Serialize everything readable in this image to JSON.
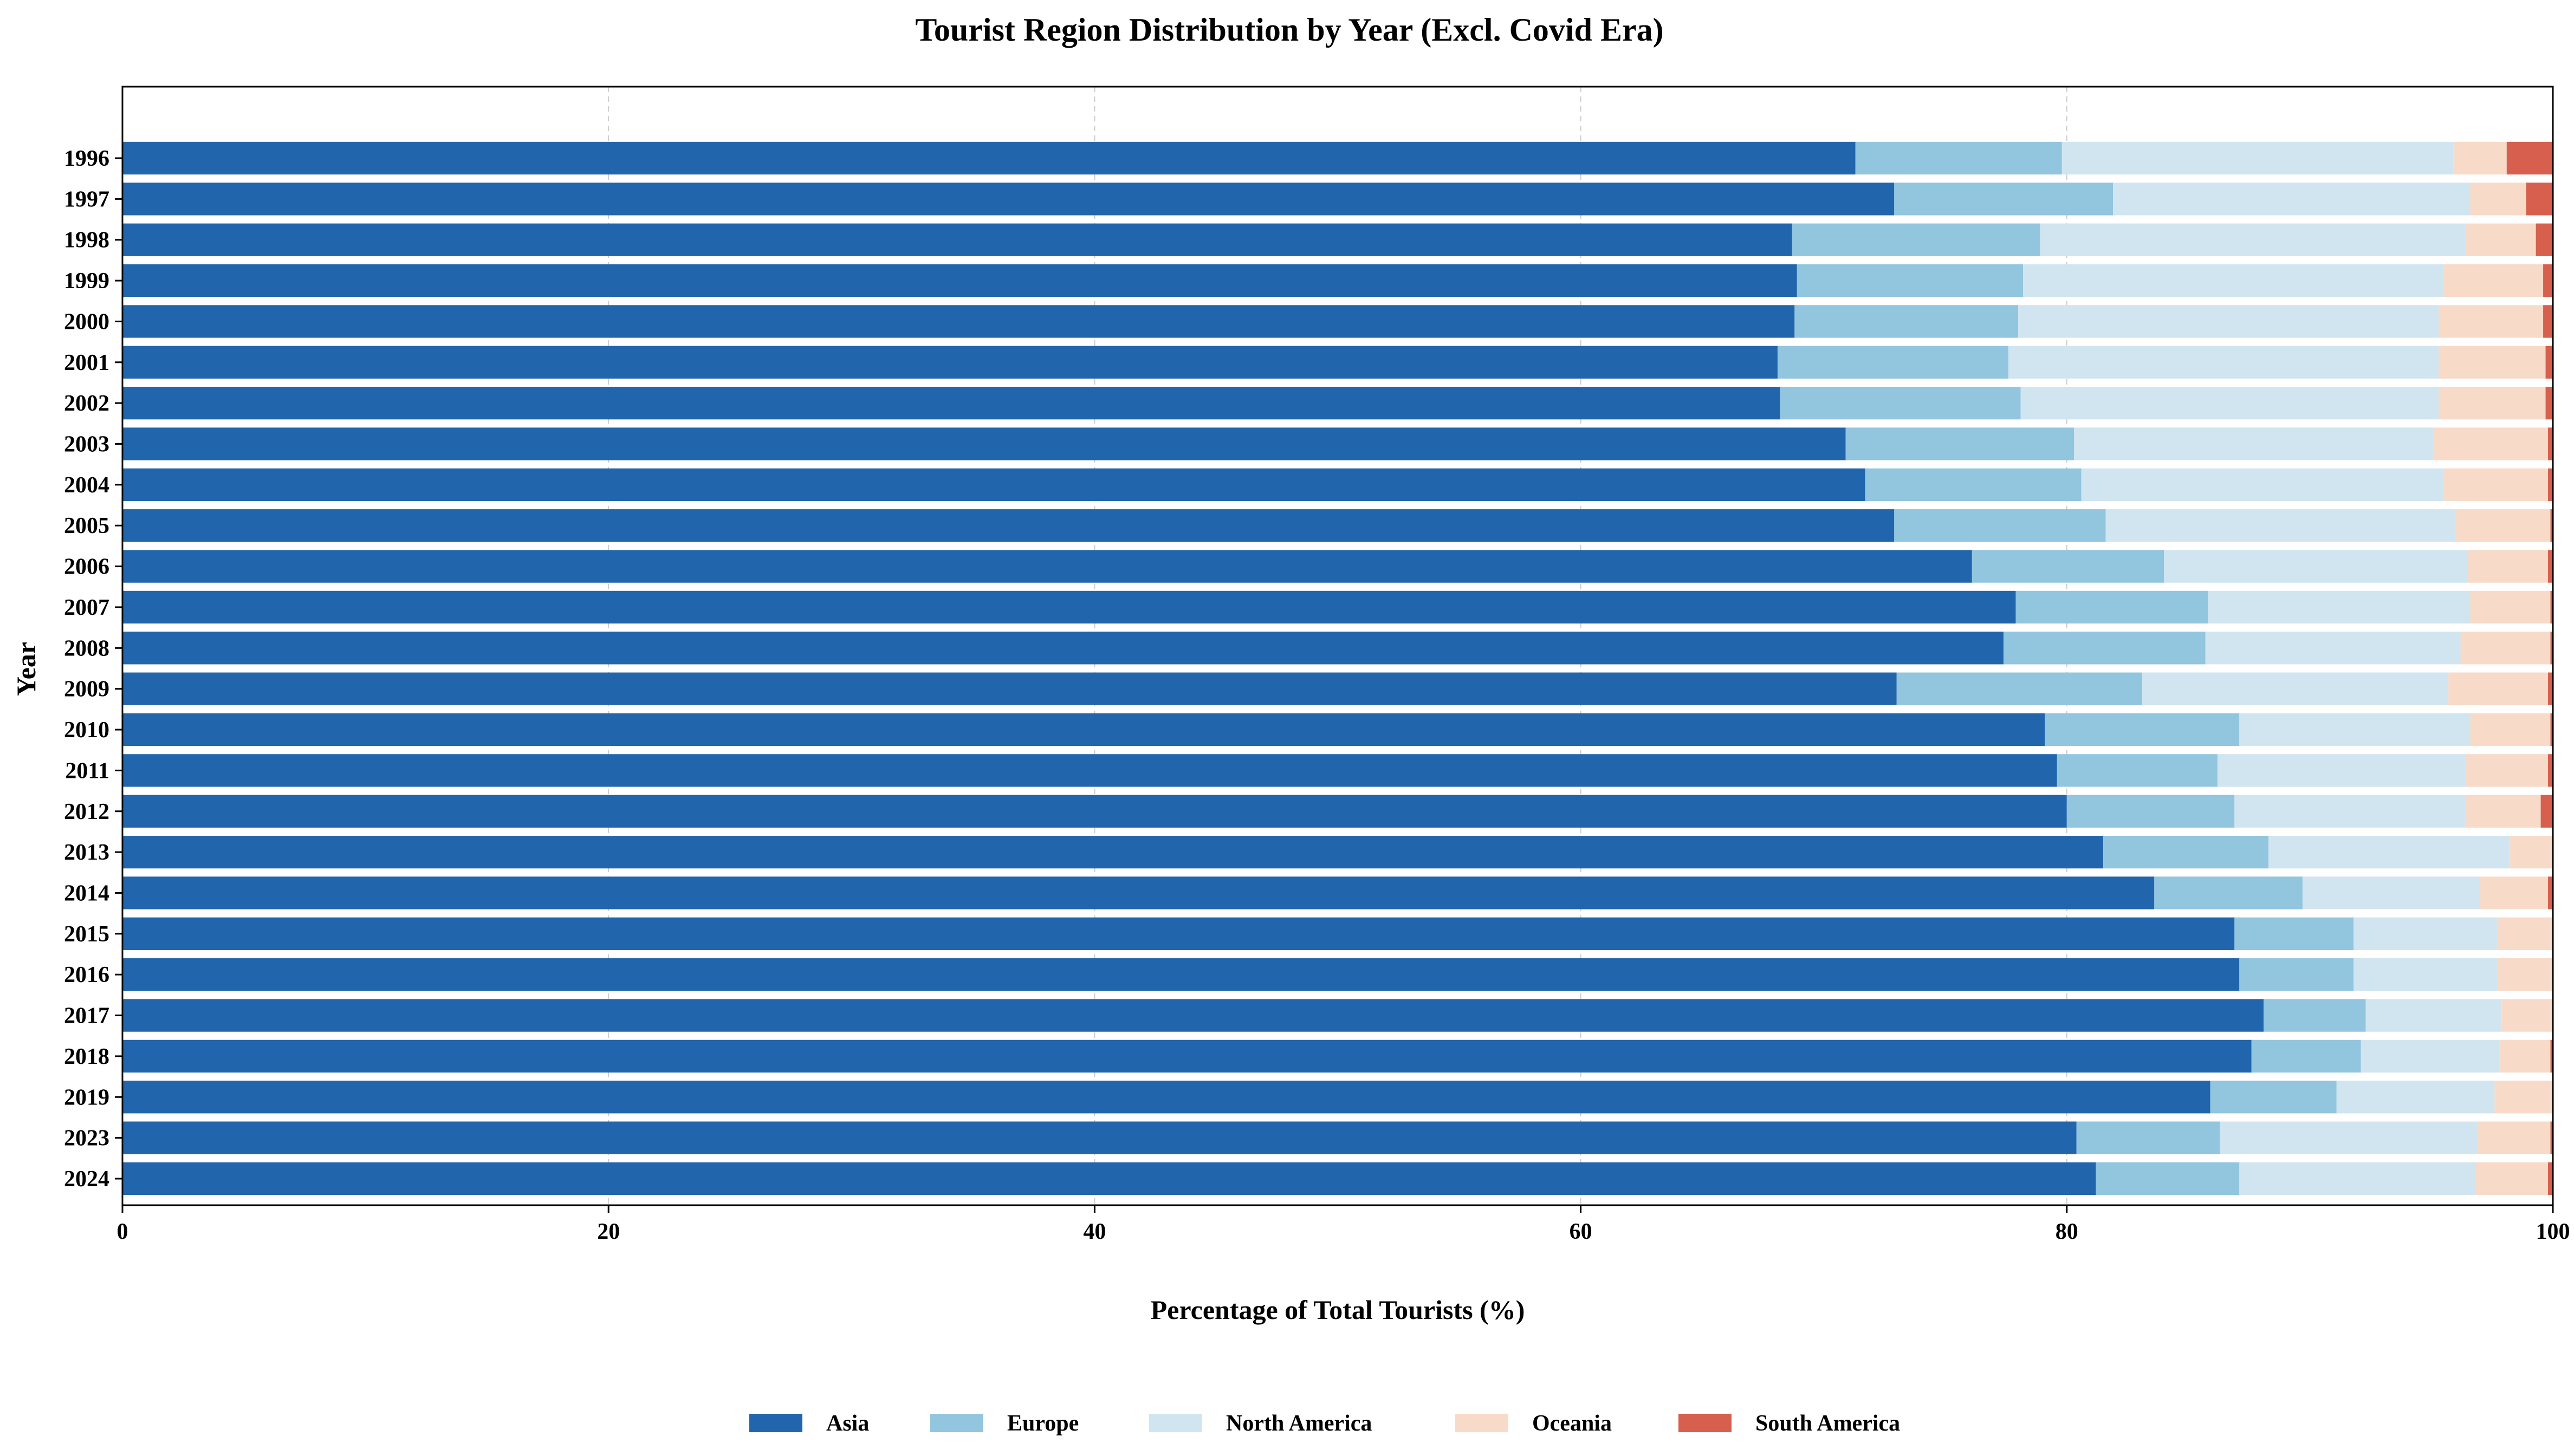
{
  "chart_data": {
    "type": "bar",
    "orientation": "horizontal",
    "stacked": true,
    "title": "Tourist Region Distribution by Year (Excl. Covid Era)",
    "xlabel": "Percentage of Total Tourists (%)",
    "ylabel": "Year",
    "xlim": [
      0,
      100
    ],
    "xticks": [
      0,
      20,
      40,
      60,
      80,
      100
    ],
    "grid": "vertical dashed",
    "legend_position": "bottom-center",
    "categories": [
      "1996",
      "1997",
      "1998",
      "1999",
      "2000",
      "2001",
      "2002",
      "2003",
      "2004",
      "2005",
      "2006",
      "2007",
      "2008",
      "2009",
      "2010",
      "2011",
      "2012",
      "2013",
      "2014",
      "2015",
      "2016",
      "2017",
      "2018",
      "2019",
      "2023",
      "2024"
    ],
    "series": [
      {
        "name": "Asia",
        "color": "#2166ac",
        "values": [
          71.3,
          72.9,
          68.7,
          68.9,
          68.8,
          68.1,
          68.2,
          70.9,
          71.7,
          72.9,
          76.1,
          77.9,
          77.4,
          73.0,
          79.1,
          79.6,
          80.0,
          81.5,
          83.6,
          86.9,
          87.1,
          88.1,
          87.6,
          85.9,
          80.4,
          81.2
        ]
      },
      {
        "name": "Europe",
        "color": "#92c5de",
        "values": [
          8.5,
          9.0,
          10.2,
          9.3,
          9.2,
          9.5,
          9.9,
          9.4,
          8.9,
          8.7,
          7.9,
          7.9,
          8.3,
          10.1,
          8.0,
          6.6,
          6.9,
          6.8,
          6.1,
          4.9,
          4.7,
          4.2,
          4.5,
          5.2,
          5.9,
          5.9
        ]
      },
      {
        "name": "North America",
        "color": "#d1e5f0",
        "values": [
          16.1,
          14.7,
          17.5,
          17.3,
          17.3,
          17.7,
          17.2,
          14.8,
          14.9,
          14.4,
          12.5,
          10.8,
          10.5,
          12.6,
          9.5,
          10.2,
          9.5,
          9.9,
          7.3,
          5.9,
          5.9,
          5.6,
          5.7,
          6.5,
          10.6,
          9.7
        ]
      },
      {
        "name": "Oceania",
        "color": "#f7dbc8",
        "values": [
          2.2,
          2.3,
          2.9,
          4.1,
          4.3,
          4.4,
          4.4,
          4.7,
          4.3,
          3.9,
          3.3,
          3.3,
          3.7,
          4.1,
          3.3,
          3.4,
          3.1,
          3.0,
          2.8,
          2.3,
          2.3,
          2.1,
          2.1,
          2.4,
          3.0,
          3.0
        ]
      },
      {
        "name": "South America",
        "color": "#d6604d",
        "values": [
          1.9,
          1.1,
          0.7,
          0.4,
          0.4,
          0.3,
          0.3,
          0.2,
          0.2,
          0.1,
          0.2,
          0.1,
          0.1,
          0.2,
          0.1,
          0.2,
          0.5,
          0.2,
          0.2,
          0.0,
          0.0,
          0.0,
          0.1,
          0.0,
          0.1,
          0.2
        ]
      }
    ]
  }
}
